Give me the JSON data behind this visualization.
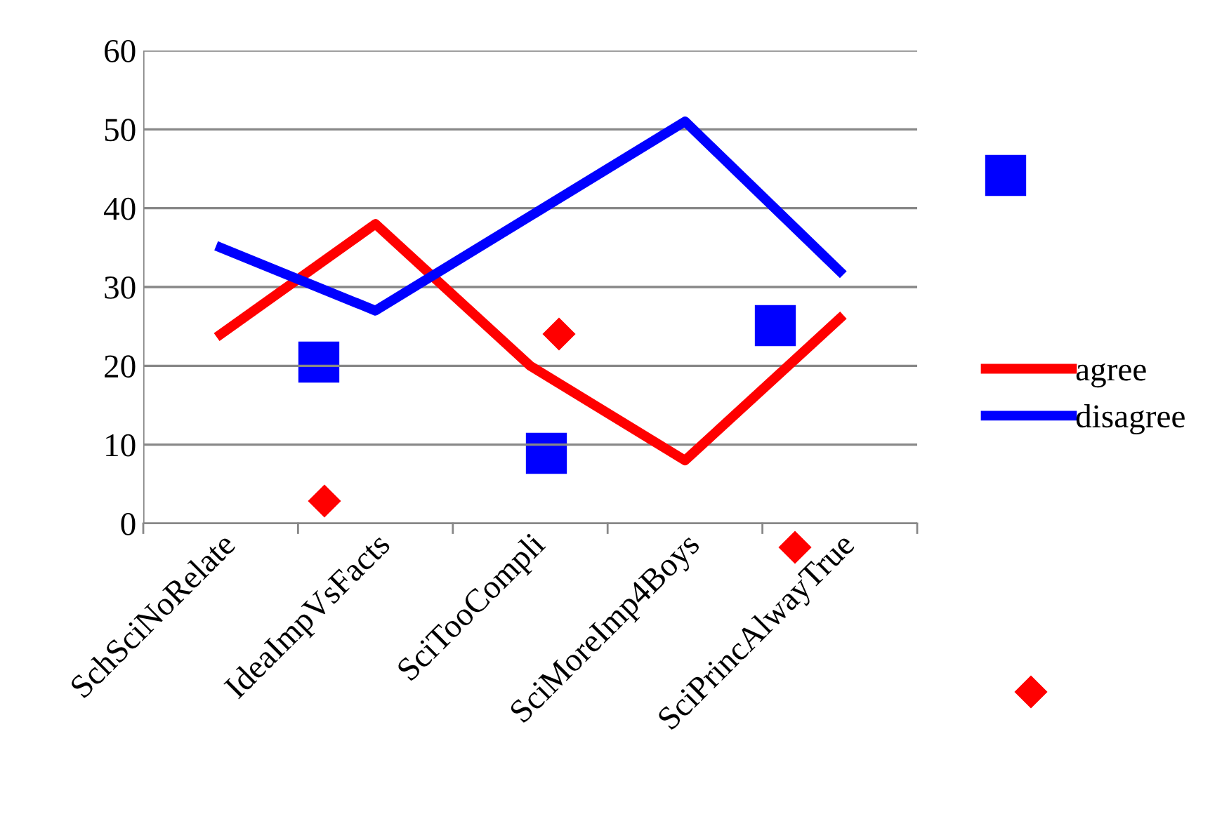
{
  "chart_data": {
    "type": "line",
    "categories": [
      "SchSciNoRelate",
      "IdeaImpVsFacts",
      "SciTooCompli",
      "SciMoreImp4Boys",
      "SciPrincAlwayTrue"
    ],
    "series": [
      {
        "name": "agree",
        "color": "#ff0000",
        "values": [
          24,
          38,
          20,
          8,
          26
        ]
      },
      {
        "name": "disagree",
        "color": "#0000ff",
        "values": [
          35,
          27,
          39,
          51,
          32
        ]
      }
    ],
    "ylim": [
      0,
      60
    ],
    "yticks": [
      0,
      10,
      20,
      30,
      40,
      50,
      60
    ],
    "grid": "y",
    "legend": "right"
  }
}
